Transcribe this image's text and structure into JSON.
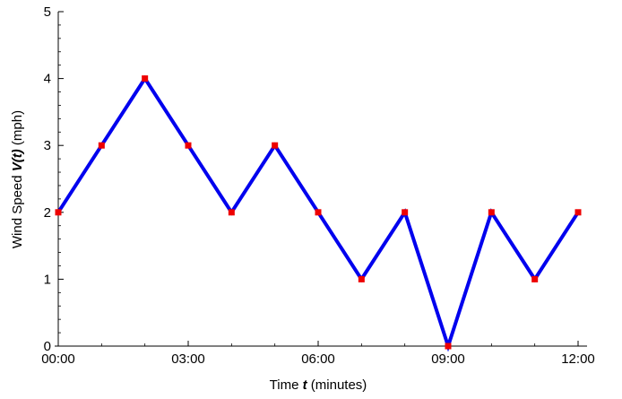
{
  "chart_data": {
    "type": "line",
    "xlabel": {
      "pre": "Time ",
      "var": "t",
      "post": " (minutes)"
    },
    "ylabel": {
      "pre": "Wind Speed ",
      "var": "V(t)",
      "post": " (mph)"
    },
    "x": [
      "00:00",
      "01:00",
      "02:00",
      "03:00",
      "04:00",
      "05:00",
      "06:00",
      "07:00",
      "08:00",
      "09:00",
      "10:00",
      "11:00",
      "12:00"
    ],
    "values": [
      2,
      3,
      4,
      3,
      2,
      3,
      2,
      1,
      2,
      0,
      2,
      1,
      2
    ],
    "x_tick_labels": [
      "00:00",
      "03:00",
      "06:00",
      "09:00",
      "12:00"
    ],
    "y_ticks": [
      0,
      1,
      2,
      3,
      4,
      5
    ],
    "xlim": [
      "00:00",
      "12:00"
    ],
    "ylim": [
      0,
      5
    ],
    "grid": false,
    "colors": {
      "line": "#0000ee",
      "marker": "#ee0000"
    }
  }
}
